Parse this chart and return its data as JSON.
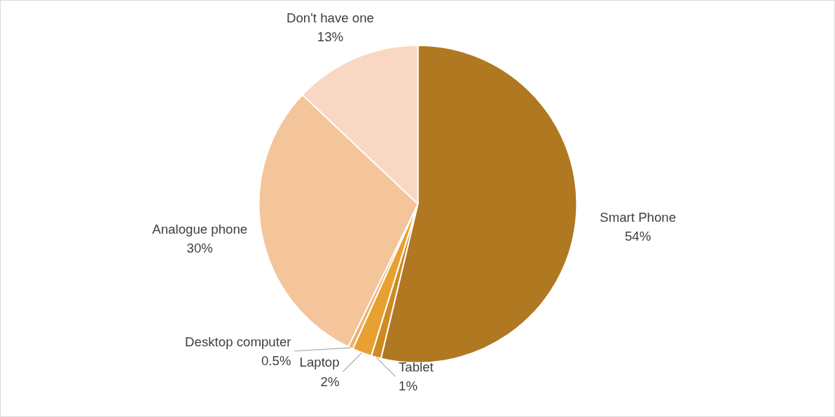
{
  "chart_data": {
    "type": "pie",
    "categories": [
      "Smart Phone",
      "Tablet",
      "Laptop",
      "Desktop computer",
      "Analogue phone",
      "Don't have one"
    ],
    "values": [
      54,
      1,
      2,
      0.5,
      30,
      13
    ],
    "colors": [
      "#b07820",
      "#cf8a22",
      "#e8a030",
      "#f0b070",
      "#f4c49a",
      "#f8d8c2"
    ],
    "value_labels": [
      "54%",
      "1%",
      "2%",
      "0.5%",
      "30%",
      "13%"
    ]
  }
}
